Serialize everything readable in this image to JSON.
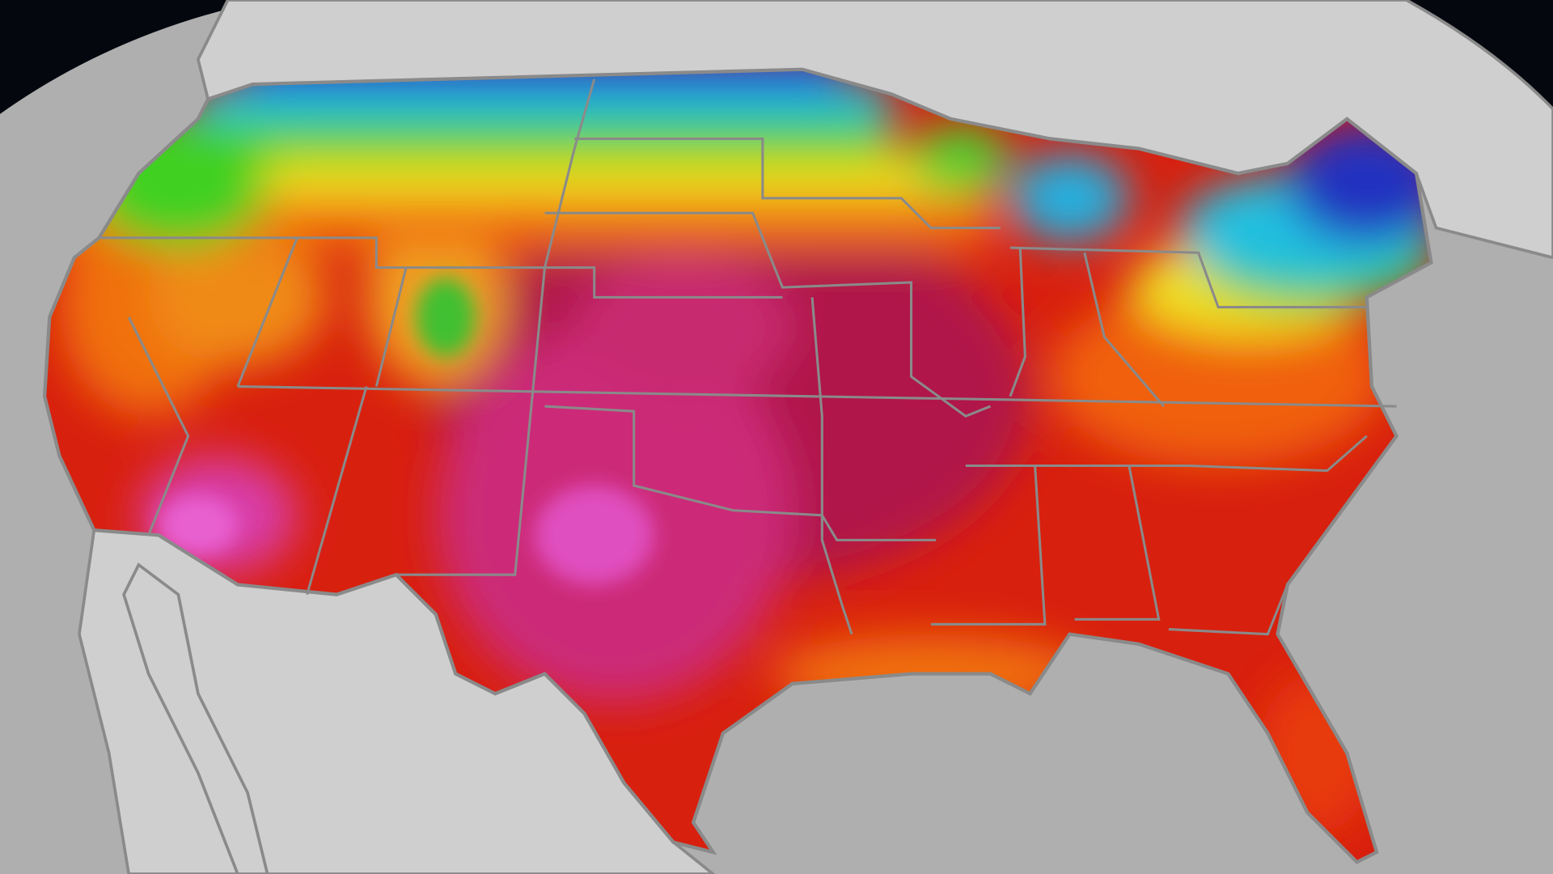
{
  "map": {
    "colors": {
      "space": "#05070f",
      "ocean": "#afafaf",
      "land": "#cfcfcf",
      "border": "#8a8a8a",
      "cold": "#2030c0",
      "cool": "#20c0e0",
      "mild": "#40d020",
      "warm": "#f0e020",
      "hot": "#f07010",
      "very_hot": "#d8200e",
      "extreme": "#b01848",
      "extreme_peak": "#e050c0"
    }
  }
}
